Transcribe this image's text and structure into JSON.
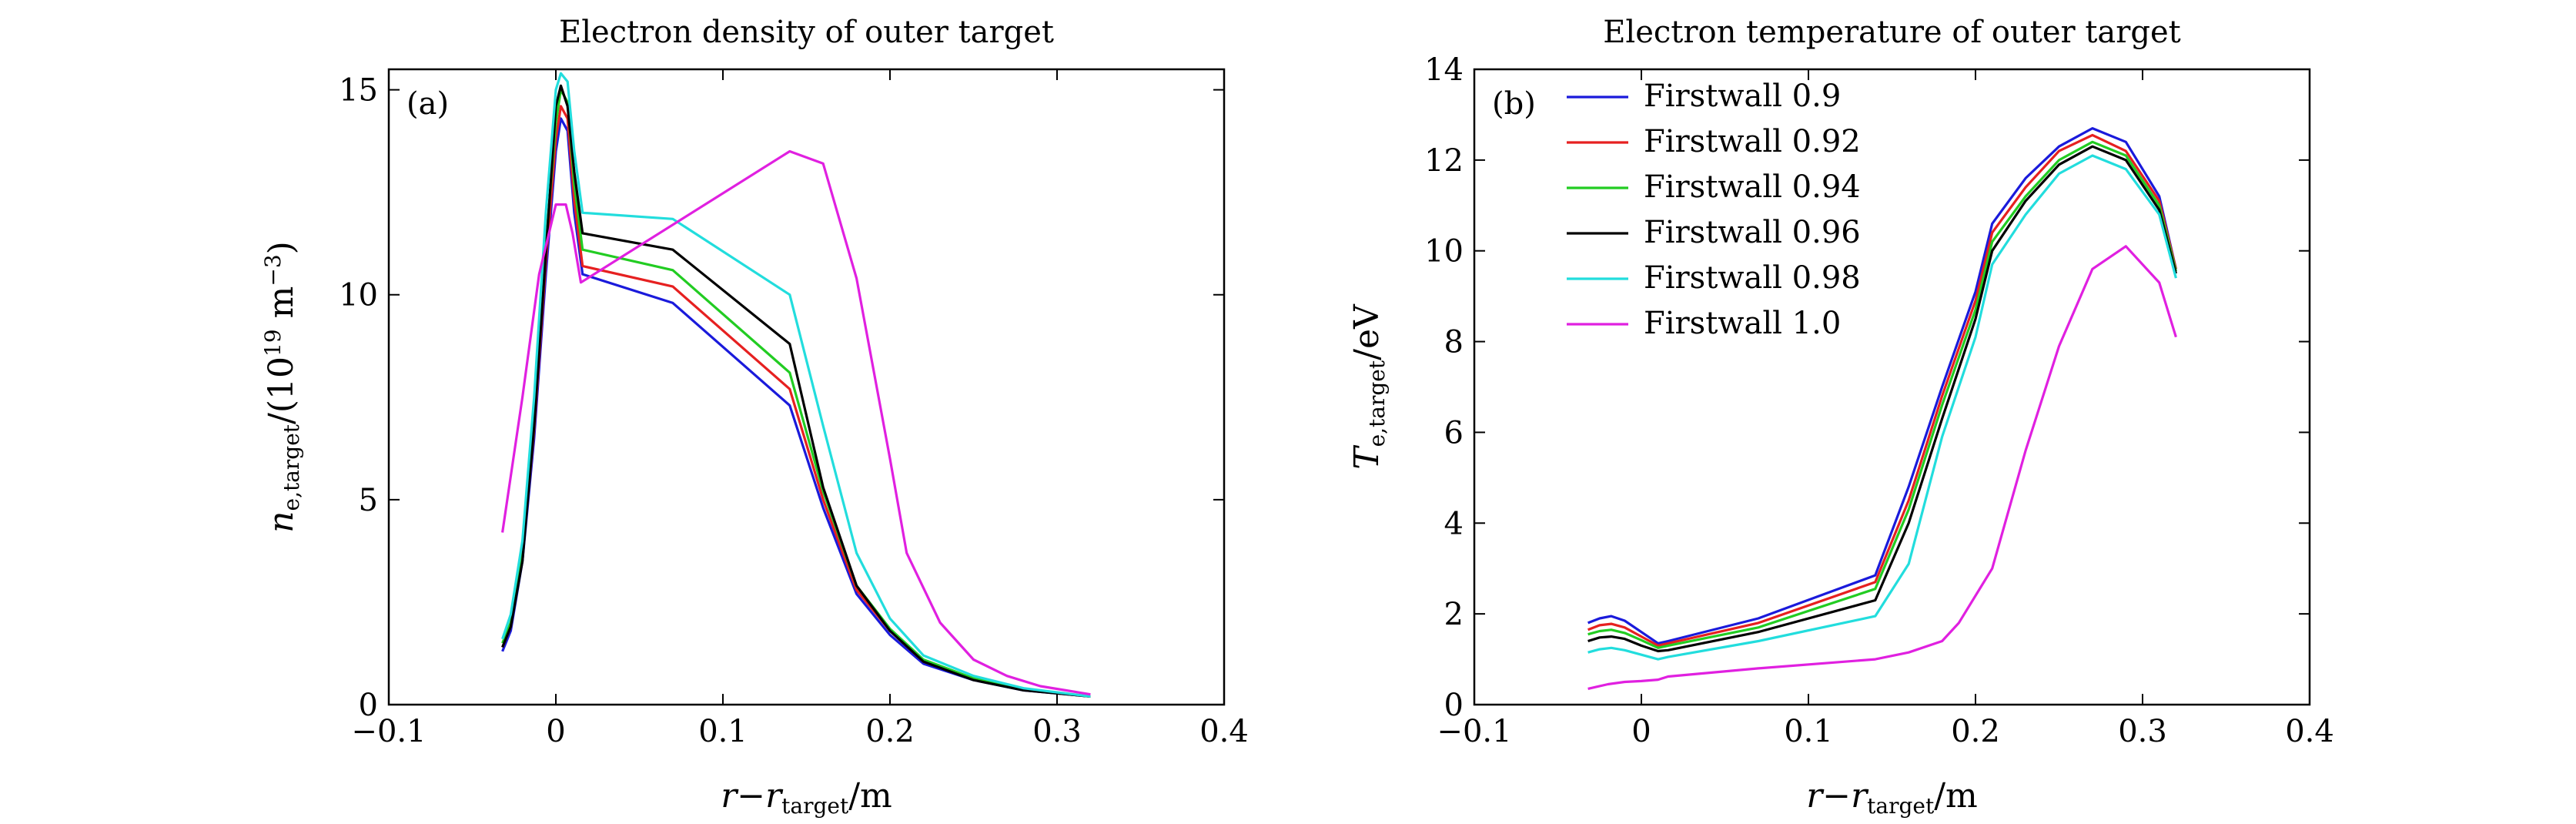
{
  "chart_data": [
    {
      "type": "line",
      "title": "Electron density of outer target",
      "panel_label": "(a)",
      "xlabel": {
        "main": "r−r",
        "sub": "target",
        "tail": "/m"
      },
      "ylabel": {
        "main": "n",
        "sub": "e,target",
        "tail": "/(10",
        "sup": "19",
        "tail2": " m",
        "sup2": "−3",
        "tail3": ")"
      },
      "xlim": [
        -0.1,
        0.4
      ],
      "ylim": [
        0,
        15.5
      ],
      "xticks": [
        -0.1,
        0,
        0.1,
        0.2,
        0.3,
        0.4
      ],
      "xtick_labels": [
        "−0.1",
        "0",
        "0.1",
        "0.2",
        "0.3",
        "0.4"
      ],
      "yticks": [
        0,
        5,
        10,
        15
      ],
      "ytick_labels": [
        "0",
        "5",
        "10",
        "15"
      ],
      "grid": false,
      "series": [
        {
          "name": "Firstwall 0.9",
          "color": "#1a1adb",
          "x": [
            -0.032,
            -0.027,
            -0.02,
            -0.013,
            -0.006,
            0,
            0.003,
            0.007,
            0.011,
            0.016,
            0.07,
            0.14,
            0.16,
            0.18,
            0.2,
            0.22,
            0.25,
            0.28,
            0.32
          ],
          "y": [
            1.3,
            1.8,
            3.5,
            6.5,
            10.5,
            13.5,
            14.3,
            14.0,
            12.0,
            10.5,
            9.8,
            7.3,
            4.8,
            2.7,
            1.7,
            1.0,
            0.6,
            0.35,
            0.2
          ]
        },
        {
          "name": "Firstwall 0.92",
          "color": "#e62020",
          "x": [
            -0.032,
            -0.027,
            -0.02,
            -0.013,
            -0.006,
            0,
            0.003,
            0.007,
            0.011,
            0.016,
            0.07,
            0.14,
            0.16,
            0.18,
            0.2,
            0.22,
            0.25,
            0.28,
            0.32
          ],
          "y": [
            1.4,
            1.9,
            3.6,
            6.7,
            10.8,
            13.8,
            14.6,
            14.3,
            12.3,
            10.7,
            10.2,
            7.7,
            5.0,
            2.8,
            1.8,
            1.05,
            0.62,
            0.36,
            0.2
          ]
        },
        {
          "name": "Firstwall 0.94",
          "color": "#22cc22",
          "x": [
            -0.032,
            -0.027,
            -0.02,
            -0.013,
            -0.006,
            0,
            0.003,
            0.007,
            0.011,
            0.016,
            0.07,
            0.14,
            0.16,
            0.18,
            0.2,
            0.22,
            0.25,
            0.28,
            0.32
          ],
          "y": [
            1.5,
            2.0,
            3.8,
            7.0,
            11.2,
            14.2,
            15.0,
            14.7,
            12.7,
            11.1,
            10.6,
            8.1,
            5.2,
            2.9,
            1.85,
            1.1,
            0.64,
            0.37,
            0.2
          ]
        },
        {
          "name": "Firstwall 0.96",
          "color": "#000000",
          "x": [
            -0.032,
            -0.027,
            -0.02,
            -0.013,
            -0.006,
            0,
            0.003,
            0.007,
            0.011,
            0.016,
            0.07,
            0.14,
            0.16,
            0.18,
            0.2,
            0.22,
            0.25,
            0.28,
            0.32
          ],
          "y": [
            1.4,
            1.9,
            3.5,
            6.8,
            11.0,
            14.6,
            15.1,
            14.6,
            13.0,
            11.5,
            11.1,
            8.8,
            5.3,
            2.9,
            1.8,
            1.05,
            0.6,
            0.35,
            0.2
          ]
        },
        {
          "name": "Firstwall 0.98",
          "color": "#22dddd",
          "x": [
            -0.032,
            -0.027,
            -0.02,
            -0.013,
            -0.006,
            0,
            0.003,
            0.007,
            0.011,
            0.016,
            0.07,
            0.14,
            0.16,
            0.18,
            0.2,
            0.22,
            0.25,
            0.28,
            0.32
          ],
          "y": [
            1.6,
            2.2,
            4.0,
            7.5,
            12.0,
            15.0,
            15.4,
            15.2,
            13.5,
            12.0,
            11.85,
            10.0,
            6.8,
            3.7,
            2.1,
            1.2,
            0.7,
            0.4,
            0.2
          ]
        },
        {
          "name": "Firstwall 1.0",
          "color": "#e020e0",
          "x": [
            -0.032,
            -0.02,
            -0.01,
            0,
            0.006,
            0.01,
            0.015,
            0.14,
            0.16,
            0.18,
            0.2,
            0.21,
            0.23,
            0.25,
            0.27,
            0.29,
            0.32
          ],
          "y": [
            4.2,
            7.5,
            10.5,
            12.2,
            12.2,
            11.5,
            10.3,
            13.5,
            13.2,
            10.4,
            6.0,
            3.7,
            2.0,
            1.1,
            0.7,
            0.45,
            0.25
          ]
        }
      ]
    },
    {
      "type": "line",
      "title": "Electron temperature of outer target",
      "panel_label": "(b)",
      "xlabel": {
        "main": "r−r",
        "sub": "target",
        "tail": "/m"
      },
      "ylabel": {
        "main": "T",
        "sub": "e,target",
        "tail": "/eV"
      },
      "xlim": [
        -0.1,
        0.4
      ],
      "ylim": [
        0,
        14
      ],
      "xticks": [
        -0.1,
        0,
        0.1,
        0.2,
        0.3,
        0.4
      ],
      "xtick_labels": [
        "−0.1",
        "0",
        "0.1",
        "0.2",
        "0.3",
        "0.4"
      ],
      "yticks": [
        0,
        2,
        4,
        6,
        8,
        10,
        12,
        14
      ],
      "ytick_labels": [
        "0",
        "2",
        "4",
        "6",
        "8",
        "10",
        "12",
        "14"
      ],
      "grid": false,
      "legend": {
        "placement": "upper-left",
        "entries": [
          "Firstwall 0.9",
          "Firstwall 0.92",
          "Firstwall 0.94",
          "Firstwall 0.96",
          "Firstwall 0.98",
          "Firstwall 1.0"
        ]
      },
      "series": [
        {
          "name": "Firstwall 0.9",
          "color": "#1a1adb",
          "x": [
            -0.032,
            -0.025,
            -0.018,
            -0.01,
            0,
            0.01,
            0.016,
            0.07,
            0.14,
            0.16,
            0.18,
            0.2,
            0.21,
            0.23,
            0.25,
            0.27,
            0.29,
            0.31,
            0.32
          ],
          "y": [
            1.8,
            1.9,
            1.95,
            1.85,
            1.6,
            1.35,
            1.4,
            1.9,
            2.85,
            4.8,
            7.0,
            9.1,
            10.6,
            11.6,
            12.3,
            12.7,
            12.4,
            11.2,
            9.6
          ]
        },
        {
          "name": "Firstwall 0.92",
          "color": "#e62020",
          "x": [
            -0.032,
            -0.025,
            -0.018,
            -0.01,
            0,
            0.01,
            0.016,
            0.07,
            0.14,
            0.16,
            0.18,
            0.2,
            0.21,
            0.23,
            0.25,
            0.27,
            0.29,
            0.31,
            0.32
          ],
          "y": [
            1.65,
            1.75,
            1.78,
            1.7,
            1.5,
            1.3,
            1.35,
            1.8,
            2.7,
            4.5,
            6.8,
            8.9,
            10.4,
            11.4,
            12.2,
            12.55,
            12.2,
            11.1,
            9.6
          ]
        },
        {
          "name": "Firstwall 0.94",
          "color": "#22cc22",
          "x": [
            -0.032,
            -0.025,
            -0.018,
            -0.01,
            0,
            0.01,
            0.016,
            0.07,
            0.14,
            0.16,
            0.18,
            0.2,
            0.21,
            0.23,
            0.25,
            0.27,
            0.29,
            0.31,
            0.32
          ],
          "y": [
            1.55,
            1.62,
            1.65,
            1.58,
            1.42,
            1.25,
            1.3,
            1.7,
            2.55,
            4.3,
            6.6,
            8.7,
            10.2,
            11.2,
            12.0,
            12.4,
            12.1,
            11.0,
            9.55
          ]
        },
        {
          "name": "Firstwall 0.96",
          "color": "#000000",
          "x": [
            -0.032,
            -0.025,
            -0.018,
            -0.01,
            0,
            0.01,
            0.016,
            0.07,
            0.14,
            0.16,
            0.18,
            0.2,
            0.21,
            0.23,
            0.25,
            0.27,
            0.29,
            0.31,
            0.32
          ],
          "y": [
            1.4,
            1.48,
            1.5,
            1.45,
            1.3,
            1.18,
            1.2,
            1.6,
            2.3,
            4.0,
            6.3,
            8.5,
            10.0,
            11.1,
            11.9,
            12.3,
            12.0,
            10.9,
            9.5
          ]
        },
        {
          "name": "Firstwall 0.98",
          "color": "#22dddd",
          "x": [
            -0.032,
            -0.025,
            -0.018,
            -0.01,
            0,
            0.01,
            0.016,
            0.07,
            0.14,
            0.16,
            0.18,
            0.2,
            0.21,
            0.23,
            0.25,
            0.27,
            0.29,
            0.31,
            0.32
          ],
          "y": [
            1.15,
            1.22,
            1.25,
            1.2,
            1.1,
            1.0,
            1.05,
            1.4,
            1.95,
            3.1,
            5.9,
            8.1,
            9.7,
            10.8,
            11.7,
            12.1,
            11.8,
            10.8,
            9.4
          ]
        },
        {
          "name": "Firstwall 1.0",
          "color": "#e020e0",
          "x": [
            -0.032,
            -0.02,
            -0.01,
            0,
            0.01,
            0.016,
            0.07,
            0.14,
            0.16,
            0.18,
            0.19,
            0.21,
            0.23,
            0.25,
            0.27,
            0.29,
            0.31,
            0.32
          ],
          "y": [
            0.35,
            0.45,
            0.5,
            0.52,
            0.55,
            0.62,
            0.8,
            1.0,
            1.15,
            1.4,
            1.8,
            3.0,
            5.6,
            7.9,
            9.6,
            10.1,
            9.3,
            8.1
          ]
        }
      ]
    }
  ]
}
